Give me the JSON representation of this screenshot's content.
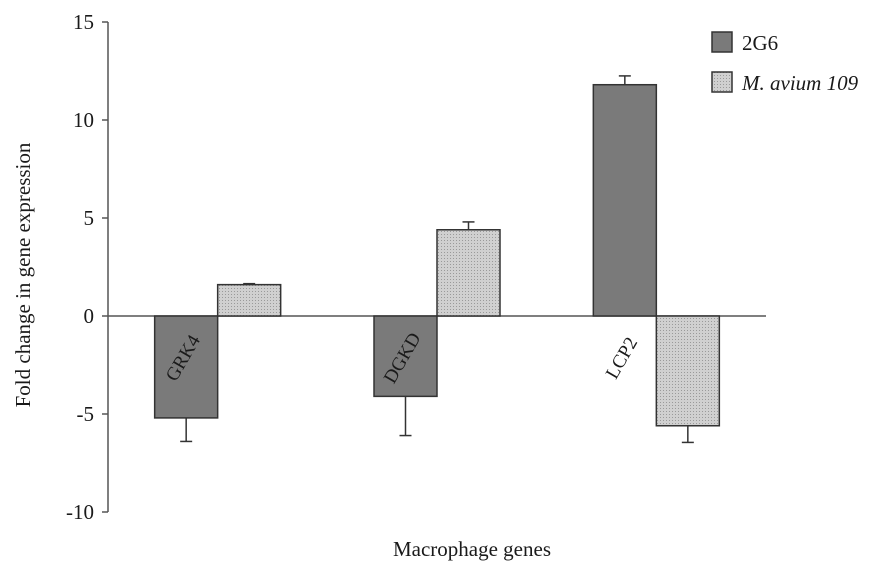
{
  "chart_data": {
    "type": "bar",
    "title": "",
    "xlabel": "Macrophage genes",
    "ylabel": "Fold change in gene expression",
    "ylim": [
      -10,
      15
    ],
    "yticks": [
      15,
      10,
      5,
      0,
      -5,
      -10
    ],
    "categories": [
      "GRK4",
      "DGKD",
      "LCP2"
    ],
    "series": [
      {
        "name": "2G6",
        "color": "#7a7a7a",
        "fill": "solid",
        "values": [
          -5.2,
          -4.1,
          11.8
        ],
        "errors": [
          1.2,
          2.0,
          0.45
        ]
      },
      {
        "name": "M. avium 109",
        "color": "#c4c4c4",
        "fill": "dotted",
        "values": [
          1.6,
          4.4,
          -5.6
        ],
        "errors": [
          0.05,
          0.4,
          0.85
        ]
      }
    ],
    "legend": "top-right",
    "grid": false
  }
}
